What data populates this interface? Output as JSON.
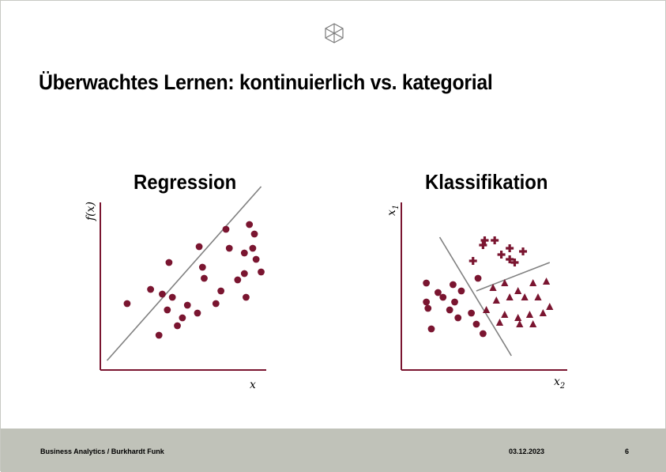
{
  "slide": {
    "title": "Überwachtes Lernen: kontinuierlich vs. kategorial",
    "logo_icon": "cube-icon"
  },
  "left_panel": {
    "heading": "Regression",
    "xlabel": "x",
    "ylabel": "f(x)"
  },
  "right_panel": {
    "heading": "Klassifikation",
    "xlabel": "x",
    "xlabel_sub": "2",
    "ylabel": "x",
    "ylabel_sub": "1"
  },
  "footer": {
    "left": "Business Analytics / Burkhardt Funk",
    "date": "03.12.2023",
    "page": "6"
  },
  "colors": {
    "accent": "#7a1530",
    "axis": "#7a1530",
    "line": "#808080",
    "footer_bg": "#c0c2b9"
  },
  "chart_data": [
    {
      "type": "scatter",
      "title": "Regression",
      "xlabel": "x",
      "ylabel": "f(x)",
      "series": [
        {
          "values": [
            [
              1.6,
              4.2
            ],
            [
              3.0,
              5.1
            ],
            [
              5.2,
              4.1
            ],
            [
              4.0,
              3.8
            ],
            [
              3.7,
              4.8
            ],
            [
              7.2,
              5.0
            ],
            [
              4.1,
              6.8
            ],
            [
              5.9,
              7.8
            ],
            [
              6.1,
              6.5
            ],
            [
              6.2,
              5.8
            ],
            [
              3.5,
              2.2
            ],
            [
              4.3,
              4.6
            ],
            [
              6.9,
              4.2
            ],
            [
              5.8,
              3.6
            ],
            [
              4.9,
              3.3
            ],
            [
              9.2,
              8.6
            ],
            [
              8.6,
              6.1
            ],
            [
              8.2,
              5.7
            ],
            [
              8.6,
              7.4
            ],
            [
              7.7,
              7.7
            ],
            [
              7.5,
              8.9
            ],
            [
              8.9,
              9.2
            ],
            [
              9.1,
              7.7
            ],
            [
              9.6,
              6.2
            ],
            [
              9.3,
              7.0
            ],
            [
              4.6,
              2.8
            ],
            [
              8.7,
              4.6
            ]
          ]
        }
      ],
      "trend_line": [
        [
          0.4,
          0.6
        ],
        [
          9.6,
          11.6
        ]
      ]
    },
    {
      "type": "scatter",
      "title": "Klassifikation",
      "xlabel": "x2",
      "ylabel": "x1",
      "series": [
        {
          "marker": "circle",
          "values": [
            [
              1.5,
              5.5
            ],
            [
              2.5,
              4.6
            ],
            [
              3.1,
              5.4
            ],
            [
              3.6,
              5.0
            ],
            [
              3.2,
              4.3
            ],
            [
              1.6,
              3.9
            ],
            [
              2.2,
              4.9
            ],
            [
              2.9,
              3.8
            ],
            [
              3.4,
              3.3
            ],
            [
              1.8,
              2.6
            ],
            [
              4.2,
              3.6
            ],
            [
              4.5,
              2.9
            ],
            [
              4.9,
              2.3
            ],
            [
              1.5,
              4.3
            ],
            [
              4.6,
              5.8
            ]
          ]
        },
        {
          "marker": "plus",
          "values": [
            [
              5.0,
              8.2
            ],
            [
              5.6,
              8.2
            ],
            [
              4.9,
              7.9
            ],
            [
              6.5,
              7.7
            ],
            [
              6.0,
              7.3
            ],
            [
              6.5,
              7.0
            ],
            [
              7.3,
              7.5
            ],
            [
              4.3,
              6.9
            ],
            [
              6.8,
              6.8
            ]
          ]
        },
        {
          "marker": "triangle",
          "values": [
            [
              5.5,
              5.2
            ],
            [
              6.2,
              5.5
            ],
            [
              7.0,
              5.0
            ],
            [
              7.9,
              5.5
            ],
            [
              8.7,
              5.6
            ],
            [
              5.7,
              4.4
            ],
            [
              6.5,
              4.6
            ],
            [
              7.4,
              4.6
            ],
            [
              8.2,
              4.6
            ],
            [
              5.1,
              3.8
            ],
            [
              6.2,
              3.5
            ],
            [
              7.0,
              3.3
            ],
            [
              7.7,
              3.5
            ],
            [
              8.5,
              3.6
            ],
            [
              5.9,
              3.0
            ],
            [
              7.1,
              2.9
            ],
            [
              7.9,
              2.9
            ],
            [
              8.9,
              4.0
            ]
          ]
        }
      ],
      "boundaries": [
        [
          [
            2.3,
            8.4
          ],
          [
            6.6,
            0.9
          ]
        ],
        [
          [
            4.5,
            5.0
          ],
          [
            8.9,
            6.8
          ]
        ]
      ]
    }
  ]
}
